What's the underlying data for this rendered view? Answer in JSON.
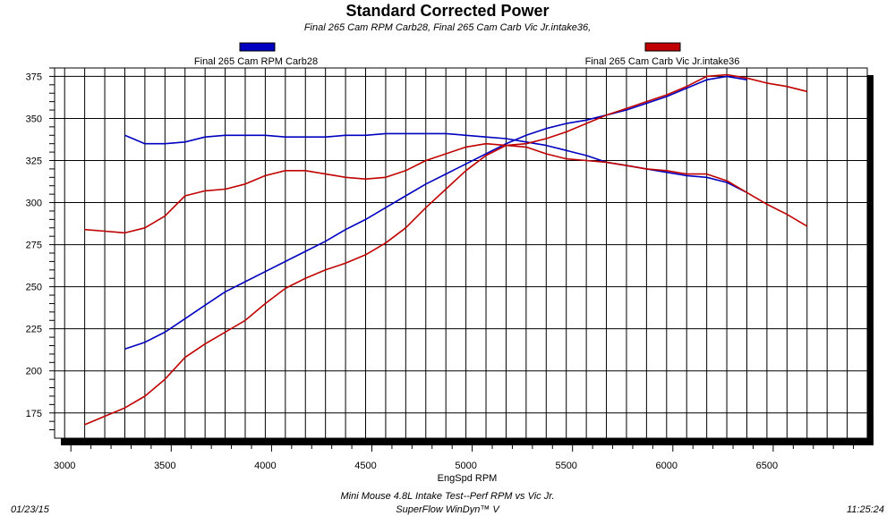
{
  "chart_data": {
    "type": "line",
    "title": "Standard Corrected Power",
    "subtitle": "Final 265 Cam RPM Carb28, Final 265 Cam Carb  Vic Jr.intake36,",
    "xlabel": "EngSpd RPM",
    "ylabel": "",
    "xlim": [
      2950,
      7000
    ],
    "ylim": [
      160,
      380
    ],
    "x_ticks": [
      3000,
      3500,
      4000,
      4500,
      5000,
      5500,
      6000,
      6500
    ],
    "y_ticks": [
      175,
      200,
      225,
      250,
      275,
      300,
      325,
      350,
      375
    ],
    "grid": true,
    "legend": [
      "top-left",
      "top-right"
    ],
    "series": [
      {
        "name": "Final 265 Cam RPM Carb28",
        "color": "#0000c0",
        "curves": [
          {
            "x": [
              3300,
              3400,
              3500,
              3600,
              3700,
              3800,
              3900,
              4000,
              4100,
              4200,
              4300,
              4400,
              4500,
              4600,
              4700,
              4800,
              4900,
              5000,
              5100,
              5200,
              5300,
              5400,
              5500,
              5600,
              5700,
              5800,
              5900,
              6000,
              6100,
              6200,
              6300,
              6400
            ],
            "y": [
              213,
              217,
              223,
              231,
              239,
              247,
              253,
              259,
              265,
              271,
              277,
              284,
              290,
              297,
              304,
              311,
              317,
              323,
              329,
              335,
              340,
              344,
              347,
              349,
              352,
              355,
              359,
              363,
              368,
              373,
              375,
              373
            ]
          },
          {
            "x": [
              3300,
              3400,
              3500,
              3600,
              3700,
              3800,
              3900,
              4000,
              4100,
              4200,
              4300,
              4400,
              4500,
              4600,
              4700,
              4800,
              4900,
              5000,
              5100,
              5200,
              5300,
              5400,
              5500,
              5600,
              5700,
              5800,
              5900,
              6000,
              6100,
              6200,
              6300,
              6400
            ],
            "y": [
              340,
              335,
              335,
              336,
              339,
              340,
              340,
              340,
              339,
              339,
              339,
              340,
              340,
              341,
              341,
              341,
              341,
              340,
              339,
              338,
              336,
              334,
              331,
              328,
              324,
              322,
              320,
              318,
              316,
              315,
              312,
              306
            ]
          }
        ]
      },
      {
        "name": "Final 265 Cam Carb  Vic Jr.intake36",
        "color": "#c00000",
        "curves": [
          {
            "x": [
              3100,
              3200,
              3300,
              3400,
              3500,
              3600,
              3700,
              3800,
              3900,
              4000,
              4100,
              4200,
              4300,
              4400,
              4500,
              4600,
              4700,
              4800,
              4900,
              5000,
              5100,
              5200,
              5300,
              5400,
              5500,
              5600,
              5700,
              5800,
              5900,
              6000,
              6100,
              6200,
              6300,
              6400,
              6500,
              6600,
              6700
            ],
            "y": [
              168,
              173,
              178,
              185,
              195,
              208,
              216,
              223,
              230,
              240,
              249,
              255,
              260,
              264,
              269,
              276,
              285,
              297,
              308,
              319,
              328,
              334,
              335,
              338,
              342,
              347,
              352,
              356,
              360,
              364,
              369,
              375,
              376,
              374,
              371,
              369,
              366
            ]
          },
          {
            "x": [
              3100,
              3200,
              3300,
              3400,
              3500,
              3600,
              3700,
              3800,
              3900,
              4000,
              4100,
              4200,
              4300,
              4400,
              4500,
              4600,
              4700,
              4800,
              4900,
              5000,
              5100,
              5200,
              5300,
              5400,
              5500,
              5600,
              5700,
              5800,
              5900,
              6000,
              6100,
              6200,
              6300,
              6400,
              6500,
              6600,
              6700
            ],
            "y": [
              284,
              283,
              282,
              285,
              292,
              304,
              307,
              308,
              311,
              316,
              319,
              319,
              317,
              315,
              314,
              315,
              319,
              325,
              329,
              333,
              335,
              334,
              333,
              329,
              326,
              325,
              324,
              322,
              320,
              319,
              317,
              317,
              313,
              306,
              299,
              293,
              286
            ]
          }
        ]
      }
    ]
  },
  "footer": {
    "date": "01/23/15",
    "time": "11:25:24",
    "line1": "Mini Mouse 4.8L Intake Test--Perf RPM vs Vic Jr.",
    "line2": "SuperFlow WinDyn™ V"
  }
}
